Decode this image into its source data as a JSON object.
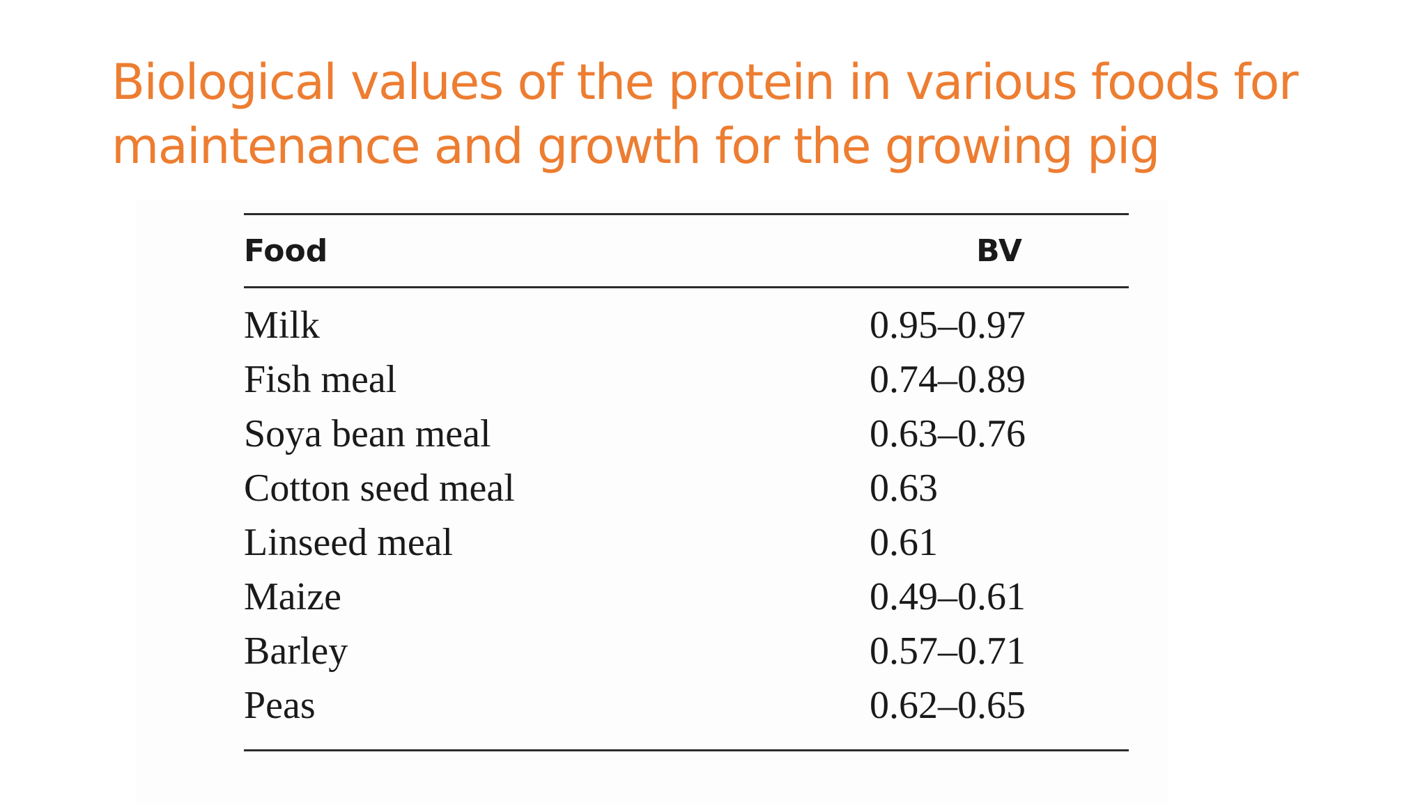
{
  "slide": {
    "title": "Biological values of the protein in various foods for maintenance and growth for the growing pig",
    "title_color": "#ED7D31"
  },
  "table": {
    "headers": {
      "food": "Food",
      "bv": "BV"
    },
    "rows": [
      {
        "food": "Milk",
        "bv": "0.95–0.97"
      },
      {
        "food": "Fish meal",
        "bv": "0.74–0.89"
      },
      {
        "food": "Soya bean meal",
        "bv": "0.63–0.76"
      },
      {
        "food": "Cotton seed meal",
        "bv": "0.63"
      },
      {
        "food": "Linseed meal",
        "bv": "0.61"
      },
      {
        "food": "Maize",
        "bv": "0.49–0.61"
      },
      {
        "food": "Barley",
        "bv": "0.57–0.71"
      },
      {
        "food": "Peas",
        "bv": "0.62–0.65"
      }
    ]
  }
}
